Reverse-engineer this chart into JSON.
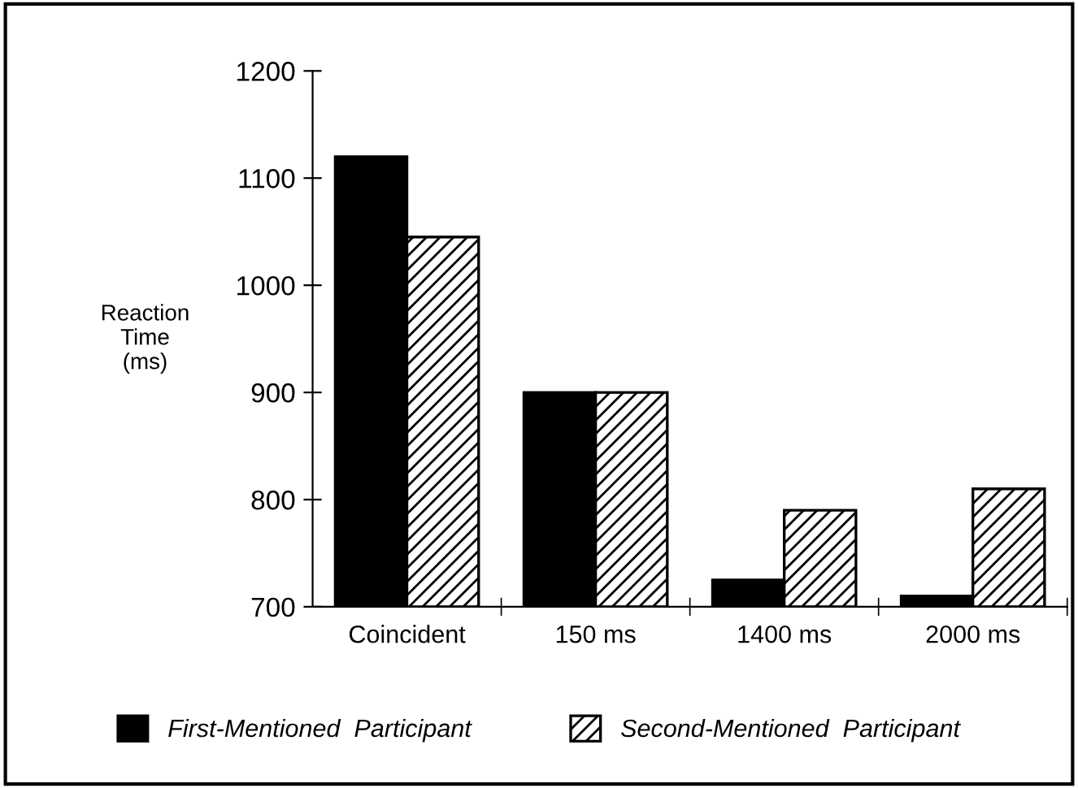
{
  "chart_data": {
    "type": "bar",
    "ylabel": "Reaction\nTime\n(ms)",
    "categories": [
      "Coincident",
      "150 ms",
      "1400 ms",
      "2000 ms"
    ],
    "series": [
      {
        "name": "First-Mentioned  Participant",
        "color": "#000000",
        "values": [
          1120,
          900,
          725,
          710
        ]
      },
      {
        "name": "Second-Mentioned  Participant",
        "color": "#000000",
        "values": [
          1045,
          900,
          790,
          810
        ]
      }
    ],
    "ylim": [
      700,
      1200
    ],
    "yticks": [
      700,
      800,
      900,
      1000,
      1100,
      1200
    ],
    "grid": false,
    "legend": "bottom"
  }
}
